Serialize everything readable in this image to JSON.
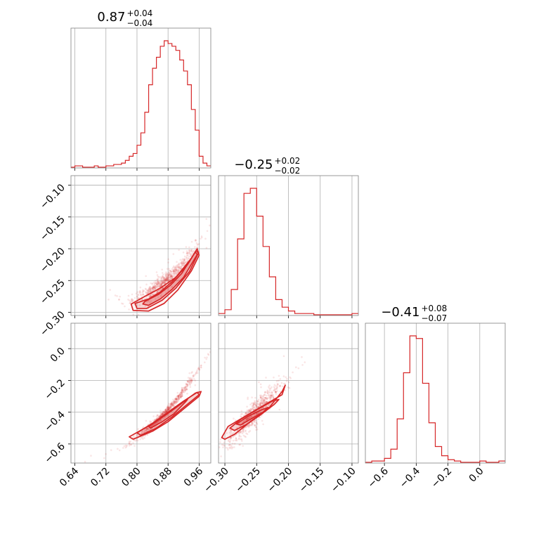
{
  "chart_data": {
    "type": "corner",
    "color": "#d62728",
    "grid": true,
    "panels": [
      {
        "id": "hist-0",
        "type": "histogram",
        "title": {
          "median": "0.87",
          "plus": "+0.04",
          "minus": "−0.04"
        },
        "x_range": [
          0.63,
          0.99
        ],
        "bins_x": [
          0.63,
          0.64,
          0.65,
          0.66,
          0.67,
          0.68,
          0.69,
          0.7,
          0.71,
          0.72,
          0.73,
          0.74,
          0.75,
          0.76,
          0.77,
          0.78,
          0.79,
          0.8,
          0.81,
          0.82,
          0.83,
          0.84,
          0.85,
          0.86,
          0.87,
          0.88,
          0.89,
          0.9,
          0.91,
          0.92,
          0.93,
          0.94,
          0.95,
          0.96,
          0.97,
          0.98,
          0.99
        ],
        "counts": [
          0,
          1,
          1,
          0,
          0,
          0,
          1,
          0,
          0,
          1,
          1,
          2,
          2,
          3,
          5,
          8,
          10,
          16,
          25,
          40,
          60,
          72,
          80,
          88,
          92,
          90,
          88,
          85,
          78,
          70,
          60,
          42,
          27,
          8,
          3,
          1
        ]
      },
      {
        "id": "hist-1",
        "type": "histogram",
        "title": {
          "median": "−0.25",
          "plus": "+0.02",
          "minus": "−0.02"
        },
        "x_range": [
          -0.31,
          -0.09
        ],
        "bins_x": [
          -0.31,
          -0.3,
          -0.29,
          -0.28,
          -0.27,
          -0.26,
          -0.25,
          -0.24,
          -0.23,
          -0.22,
          -0.21,
          -0.2,
          -0.19,
          -0.18,
          -0.17,
          -0.16,
          -0.15,
          -0.14,
          -0.13,
          -0.12,
          -0.11,
          -0.1,
          -0.09
        ],
        "counts": [
          1,
          4,
          20,
          60,
          96,
          100,
          78,
          54,
          30,
          12,
          6,
          3,
          1,
          1,
          1,
          0,
          0,
          0,
          0,
          0,
          0,
          1
        ]
      },
      {
        "id": "hist-2",
        "type": "histogram",
        "title": {
          "median": "−0.41",
          "plus": "+0.08",
          "minus": "−0.07"
        },
        "x_range": [
          -0.72,
          0.16
        ],
        "bins_x": [
          -0.72,
          -0.68,
          -0.64,
          -0.6,
          -0.56,
          -0.52,
          -0.48,
          -0.44,
          -0.4,
          -0.36,
          -0.32,
          -0.28,
          -0.24,
          -0.2,
          -0.16,
          -0.12,
          -0.08,
          -0.04,
          0.0,
          0.04,
          0.08,
          0.12,
          0.16
        ],
        "counts": [
          0,
          1,
          1,
          3,
          10,
          33,
          68,
          96,
          94,
          60,
          30,
          12,
          5,
          2,
          1,
          0,
          0,
          0,
          1,
          0,
          0,
          1
        ]
      },
      {
        "id": "scatter-1-0",
        "type": "scatter_contour",
        "x_range": [
          0.63,
          0.99
        ],
        "y_range": [
          -0.305,
          -0.085
        ],
        "relation": {
          "x0": 0.87,
          "y0": -0.253,
          "slope": 0.5,
          "curve": 2.2,
          "xsd": 0.04,
          "ysd": 0.006
        },
        "contours": [
          {
            "level": 0.39,
            "points": [
              [
                0.82,
                -0.283
              ],
              [
                0.855,
                -0.272
              ],
              [
                0.885,
                -0.258
              ],
              [
                0.915,
                -0.239
              ],
              [
                0.95,
                -0.205
              ],
              [
                0.955,
                -0.209
              ],
              [
                0.92,
                -0.245
              ],
              [
                0.89,
                -0.264
              ],
              [
                0.86,
                -0.279
              ],
              [
                0.83,
                -0.289
              ],
              [
                0.815,
                -0.287
              ]
            ]
          },
          {
            "level": 0.86,
            "points": [
              [
                0.795,
                -0.286
              ],
              [
                0.83,
                -0.279
              ],
              [
                0.86,
                -0.268
              ],
              [
                0.89,
                -0.252
              ],
              [
                0.93,
                -0.225
              ],
              [
                0.952,
                -0.203
              ],
              [
                0.958,
                -0.207
              ],
              [
                0.935,
                -0.236
              ],
              [
                0.9,
                -0.262
              ],
              [
                0.865,
                -0.281
              ],
              [
                0.825,
                -0.294
              ],
              [
                0.8,
                -0.294
              ]
            ]
          },
          {
            "level": 0.99,
            "points": [
              [
                0.785,
                -0.287
              ],
              [
                0.82,
                -0.275
              ],
              [
                0.86,
                -0.262
              ],
              [
                0.9,
                -0.245
              ],
              [
                0.94,
                -0.215
              ],
              [
                0.955,
                -0.2
              ],
              [
                0.96,
                -0.21
              ],
              [
                0.94,
                -0.235
              ],
              [
                0.905,
                -0.265
              ],
              [
                0.87,
                -0.286
              ],
              [
                0.83,
                -0.298
              ],
              [
                0.79,
                -0.297
              ]
            ]
          }
        ]
      },
      {
        "id": "scatter-2-0",
        "type": "scatter_contour",
        "x_range": [
          0.63,
          0.99
        ],
        "y_range": [
          -0.72,
          0.16
        ],
        "relation": {
          "x0": 0.87,
          "y0": -0.41,
          "slope": 2.6,
          "curve": 6.0,
          "xsd": 0.04,
          "ysd": 0.012
        },
        "contours": [
          {
            "level": 0.39,
            "points": [
              [
                0.83,
                -0.49
              ],
              [
                0.86,
                -0.44
              ],
              [
                0.89,
                -0.39
              ],
              [
                0.92,
                -0.335
              ],
              [
                0.93,
                -0.32
              ],
              [
                0.925,
                -0.335
              ],
              [
                0.895,
                -0.41
              ],
              [
                0.865,
                -0.46
              ],
              [
                0.835,
                -0.5
              ]
            ]
          },
          {
            "level": 0.86,
            "points": [
              [
                0.8,
                -0.53
              ],
              [
                0.84,
                -0.47
              ],
              [
                0.88,
                -0.4
              ],
              [
                0.92,
                -0.33
              ],
              [
                0.955,
                -0.275
              ],
              [
                0.96,
                -0.29
              ],
              [
                0.93,
                -0.35
              ],
              [
                0.89,
                -0.43
              ],
              [
                0.85,
                -0.5
              ],
              [
                0.81,
                -0.545
              ]
            ]
          },
          {
            "level": 0.99,
            "points": [
              [
                0.78,
                -0.555
              ],
              [
                0.82,
                -0.5
              ],
              [
                0.86,
                -0.44
              ],
              [
                0.9,
                -0.37
              ],
              [
                0.95,
                -0.28
              ],
              [
                0.965,
                -0.27
              ],
              [
                0.96,
                -0.3
              ],
              [
                0.92,
                -0.38
              ],
              [
                0.88,
                -0.46
              ],
              [
                0.84,
                -0.52
              ],
              [
                0.79,
                -0.57
              ]
            ]
          }
        ]
      },
      {
        "id": "scatter-2-1",
        "type": "scatter_contour",
        "x_range": [
          -0.31,
          -0.09
        ],
        "y_range": [
          -0.72,
          0.16
        ],
        "relation": {
          "x0": -0.255,
          "y0": -0.41,
          "slope": 4.2,
          "curve": 0,
          "xsd": 0.02,
          "ysd": 0.035
        },
        "contours": [
          {
            "level": 0.39,
            "points": [
              [
                -0.282,
                -0.475
              ],
              [
                -0.265,
                -0.43
              ],
              [
                -0.245,
                -0.39
              ],
              [
                -0.232,
                -0.37
              ],
              [
                -0.24,
                -0.4
              ],
              [
                -0.258,
                -0.44
              ],
              [
                -0.275,
                -0.48
              ]
            ]
          },
          {
            "level": 0.86,
            "points": [
              [
                -0.292,
                -0.5
              ],
              [
                -0.275,
                -0.445
              ],
              [
                -0.25,
                -0.385
              ],
              [
                -0.225,
                -0.33
              ],
              [
                -0.215,
                -0.32
              ],
              [
                -0.222,
                -0.35
              ],
              [
                -0.245,
                -0.42
              ],
              [
                -0.265,
                -0.475
              ],
              [
                -0.285,
                -0.515
              ]
            ]
          },
          {
            "level": 0.99,
            "points": [
              [
                -0.305,
                -0.56
              ],
              [
                -0.295,
                -0.49
              ],
              [
                -0.27,
                -0.43
              ],
              [
                -0.24,
                -0.36
              ],
              [
                -0.21,
                -0.29
              ],
              [
                -0.205,
                -0.23
              ],
              [
                -0.21,
                -0.27
              ],
              [
                -0.23,
                -0.37
              ],
              [
                -0.26,
                -0.46
              ],
              [
                -0.285,
                -0.54
              ],
              [
                -0.3,
                -0.57
              ]
            ]
          }
        ]
      }
    ],
    "x_ticks": [
      {
        "column": 0,
        "values": [
          0.64,
          0.72,
          0.8,
          0.88,
          0.96
        ],
        "labels": [
          "0.64",
          "0.72",
          "0.80",
          "0.88",
          "0.96"
        ]
      },
      {
        "column": 1,
        "values": [
          -0.3,
          -0.25,
          -0.2,
          -0.15,
          -0.1
        ],
        "labels": [
          "−0.30",
          "−0.25",
          "−0.20",
          "−0.15",
          "−0.10"
        ]
      },
      {
        "column": 2,
        "values": [
          -0.6,
          -0.4,
          -0.2,
          0.0
        ],
        "labels": [
          "−0.6",
          "−0.4",
          "−0.2",
          "0.0"
        ]
      }
    ],
    "y_ticks": [
      {
        "row": 1,
        "values": [
          -0.1,
          -0.15,
          -0.2,
          -0.25,
          -0.3
        ],
        "labels": [
          "−0.10",
          "−0.15",
          "−0.20",
          "−0.25",
          "−0.30"
        ]
      },
      {
        "row": 2,
        "values": [
          0.0,
          -0.2,
          -0.4,
          -0.6
        ],
        "labels": [
          "0.0",
          "−0.2",
          "−0.4",
          "−0.6"
        ]
      }
    ]
  }
}
